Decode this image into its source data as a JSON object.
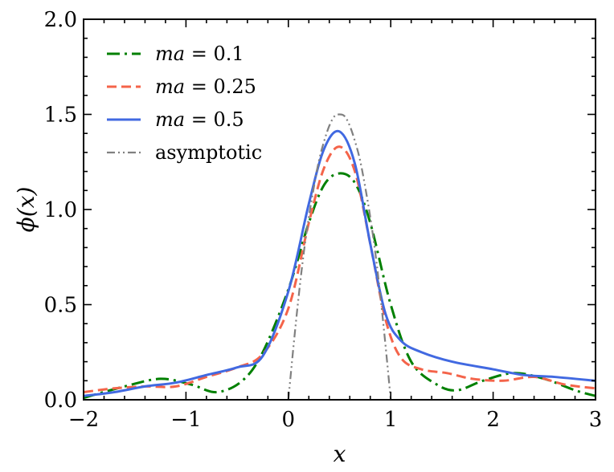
{
  "chart_data": {
    "type": "line",
    "title": "",
    "xlabel": "x",
    "ylabel": "ϕ(x)",
    "xlim": [
      -2,
      3
    ],
    "ylim": [
      0,
      2
    ],
    "xticks": [
      -2,
      -1,
      0,
      1,
      2,
      3
    ],
    "xtick_labels": [
      "−2",
      "−1",
      "0",
      "1",
      "2",
      "3"
    ],
    "yticks": [
      0,
      0.5,
      1,
      1.5,
      2
    ],
    "ytick_labels": [
      "0.0",
      "0.5",
      "1.0",
      "1.5",
      "2.0"
    ],
    "grid": false,
    "legend_position": "top-left",
    "series": [
      {
        "name": "ma = 0.1",
        "label_italic": "ma",
        "label_rest": " = 0.1",
        "color": "#008000",
        "style": "dashdot",
        "x": [
          -2.0,
          -1.6,
          -1.25,
          -0.95,
          -0.7,
          -0.45,
          -0.25,
          0.0,
          0.2,
          0.35,
          0.5,
          0.65,
          0.8,
          1.0,
          1.2,
          1.45,
          1.65,
          1.9,
          2.2,
          2.5,
          2.8,
          3.0
        ],
        "y": [
          0.01,
          0.07,
          0.11,
          0.08,
          0.04,
          0.1,
          0.25,
          0.58,
          0.93,
          1.13,
          1.19,
          1.14,
          0.93,
          0.5,
          0.2,
          0.08,
          0.05,
          0.1,
          0.14,
          0.11,
          0.05,
          0.02
        ]
      },
      {
        "name": "ma = 0.25",
        "label_italic": "ma",
        "label_rest": " = 0.25",
        "color": "#f4644a",
        "style": "dashed",
        "x": [
          -2.0,
          -1.7,
          -1.4,
          -1.1,
          -0.8,
          -0.5,
          -0.25,
          0.0,
          0.2,
          0.35,
          0.5,
          0.65,
          0.8,
          0.95,
          1.1,
          1.3,
          1.55,
          1.8,
          2.1,
          2.4,
          2.7,
          3.0
        ],
        "y": [
          0.04,
          0.06,
          0.07,
          0.07,
          0.12,
          0.17,
          0.24,
          0.48,
          0.93,
          1.22,
          1.33,
          1.2,
          0.82,
          0.42,
          0.22,
          0.16,
          0.14,
          0.11,
          0.1,
          0.12,
          0.08,
          0.06
        ]
      },
      {
        "name": "ma = 0.5",
        "label_italic": "ma",
        "label_rest": " = 0.5",
        "color": "#4169e1",
        "style": "solid",
        "x": [
          -2.0,
          -1.7,
          -1.4,
          -1.1,
          -0.8,
          -0.5,
          -0.25,
          0.0,
          0.2,
          0.35,
          0.5,
          0.65,
          0.8,
          0.95,
          1.1,
          1.3,
          1.6,
          2.0,
          2.3,
          2.6,
          3.0
        ],
        "y": [
          0.02,
          0.04,
          0.07,
          0.09,
          0.13,
          0.17,
          0.23,
          0.57,
          1.03,
          1.32,
          1.41,
          1.24,
          0.82,
          0.45,
          0.31,
          0.25,
          0.2,
          0.16,
          0.13,
          0.12,
          0.1
        ]
      },
      {
        "name": "asymptotic",
        "label_italic": "",
        "label_rest": "asymptotic",
        "color": "#808080",
        "style": "dashdotdot",
        "x": [
          0.0,
          0.05,
          0.1,
          0.15,
          0.2,
          0.25,
          0.3,
          0.35,
          0.4,
          0.45,
          0.5,
          0.55,
          0.6,
          0.65,
          0.7,
          0.75,
          0.8,
          0.85,
          0.9,
          0.95,
          1.0
        ],
        "y": [
          0.0,
          0.28,
          0.54,
          0.77,
          0.96,
          1.12,
          1.26,
          1.36,
          1.44,
          1.49,
          1.5,
          1.49,
          1.44,
          1.36,
          1.26,
          1.12,
          0.96,
          0.77,
          0.54,
          0.28,
          0.0
        ]
      }
    ]
  }
}
